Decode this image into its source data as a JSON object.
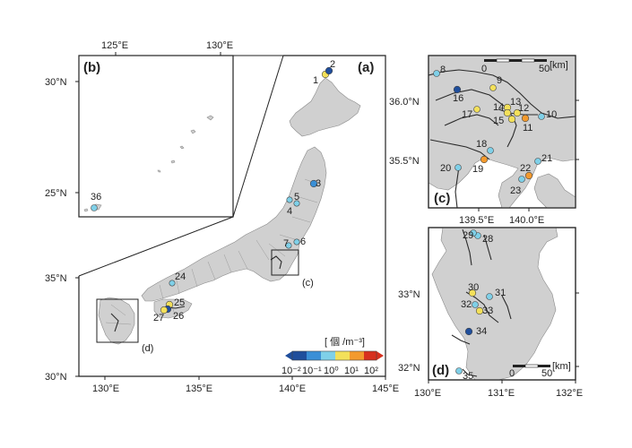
{
  "panels": {
    "a": {
      "label": "(a)",
      "lon_ticks": [
        "130°E",
        "135°E",
        "140°E",
        "145°E"
      ],
      "lat_ticks": [
        "30°N",
        "35°N"
      ]
    },
    "b": {
      "label": "(b)",
      "lon_ticks": [
        "125°E",
        "130°E"
      ],
      "lat_ticks": [
        "30°N",
        "25°N"
      ]
    },
    "c": {
      "label": "(c)",
      "lon_ticks": [
        "139.5°E",
        "140.0°E"
      ],
      "lat_ticks": [
        "36.0°N",
        "35.5°N"
      ],
      "scale_labels": [
        "0",
        "50"
      ],
      "scale_unit": "[km]"
    },
    "d": {
      "label": "(d)",
      "lon_ticks": [
        "130°E",
        "131°E",
        "132°E"
      ],
      "lat_ticks": [
        "33°N",
        "32°N"
      ],
      "scale_labels": [
        "0",
        "50"
      ],
      "scale_unit": "[km]"
    }
  },
  "colorbar": {
    "title": "[ 個 /m⁻³]",
    "tick_labels": [
      "10⁻²",
      "10⁻¹",
      "10⁰",
      "10¹",
      "10²"
    ],
    "colors": [
      "#1f4e9c",
      "#3a8fd6",
      "#7fd0e8",
      "#f3e05a",
      "#f39a2e",
      "#d7301f"
    ]
  },
  "stations": [
    {
      "id": "1",
      "level": "#f3e05a"
    },
    {
      "id": "2",
      "level": "#1f4e9c"
    },
    {
      "id": "3",
      "level": "#3a8fd6"
    },
    {
      "id": "4",
      "level": "#7fd0e8"
    },
    {
      "id": "5",
      "level": "#7fd0e8"
    },
    {
      "id": "6",
      "level": "#7fd0e8"
    },
    {
      "id": "7",
      "level": "#7fd0e8"
    },
    {
      "id": "8",
      "level": "#7fd0e8"
    },
    {
      "id": "9",
      "level": "#f3e05a"
    },
    {
      "id": "10",
      "level": "#7fd0e8"
    },
    {
      "id": "11",
      "level": "#f39a2e"
    },
    {
      "id": "12",
      "level": "#f3e05a"
    },
    {
      "id": "13",
      "level": "#f3e05a"
    },
    {
      "id": "14",
      "level": "#f3e05a"
    },
    {
      "id": "15",
      "level": "#f3e05a"
    },
    {
      "id": "16",
      "level": "#1f4e9c"
    },
    {
      "id": "17",
      "level": "#f3e05a"
    },
    {
      "id": "18",
      "level": "#7fd0e8"
    },
    {
      "id": "19",
      "level": "#f39a2e"
    },
    {
      "id": "20",
      "level": "#7fd0e8"
    },
    {
      "id": "21",
      "level": "#7fd0e8"
    },
    {
      "id": "22",
      "level": "#f39a2e"
    },
    {
      "id": "23",
      "level": "#7fd0e8"
    },
    {
      "id": "24",
      "level": "#7fd0e8"
    },
    {
      "id": "25",
      "level": "#f3e05a"
    },
    {
      "id": "26",
      "level": "#1f4e9c"
    },
    {
      "id": "27",
      "level": "#f3e05a"
    },
    {
      "id": "28",
      "level": "#7fd0e8"
    },
    {
      "id": "29",
      "level": "#7fd0e8"
    },
    {
      "id": "30",
      "level": "#f3e05a"
    },
    {
      "id": "31",
      "level": "#7fd0e8"
    },
    {
      "id": "32",
      "level": "#7fd0e8"
    },
    {
      "id": "33",
      "level": "#f3e05a"
    },
    {
      "id": "34",
      "level": "#1f4e9c"
    },
    {
      "id": "35",
      "level": "#7fd0e8"
    },
    {
      "id": "36",
      "level": "#7fd0e8"
    }
  ]
}
